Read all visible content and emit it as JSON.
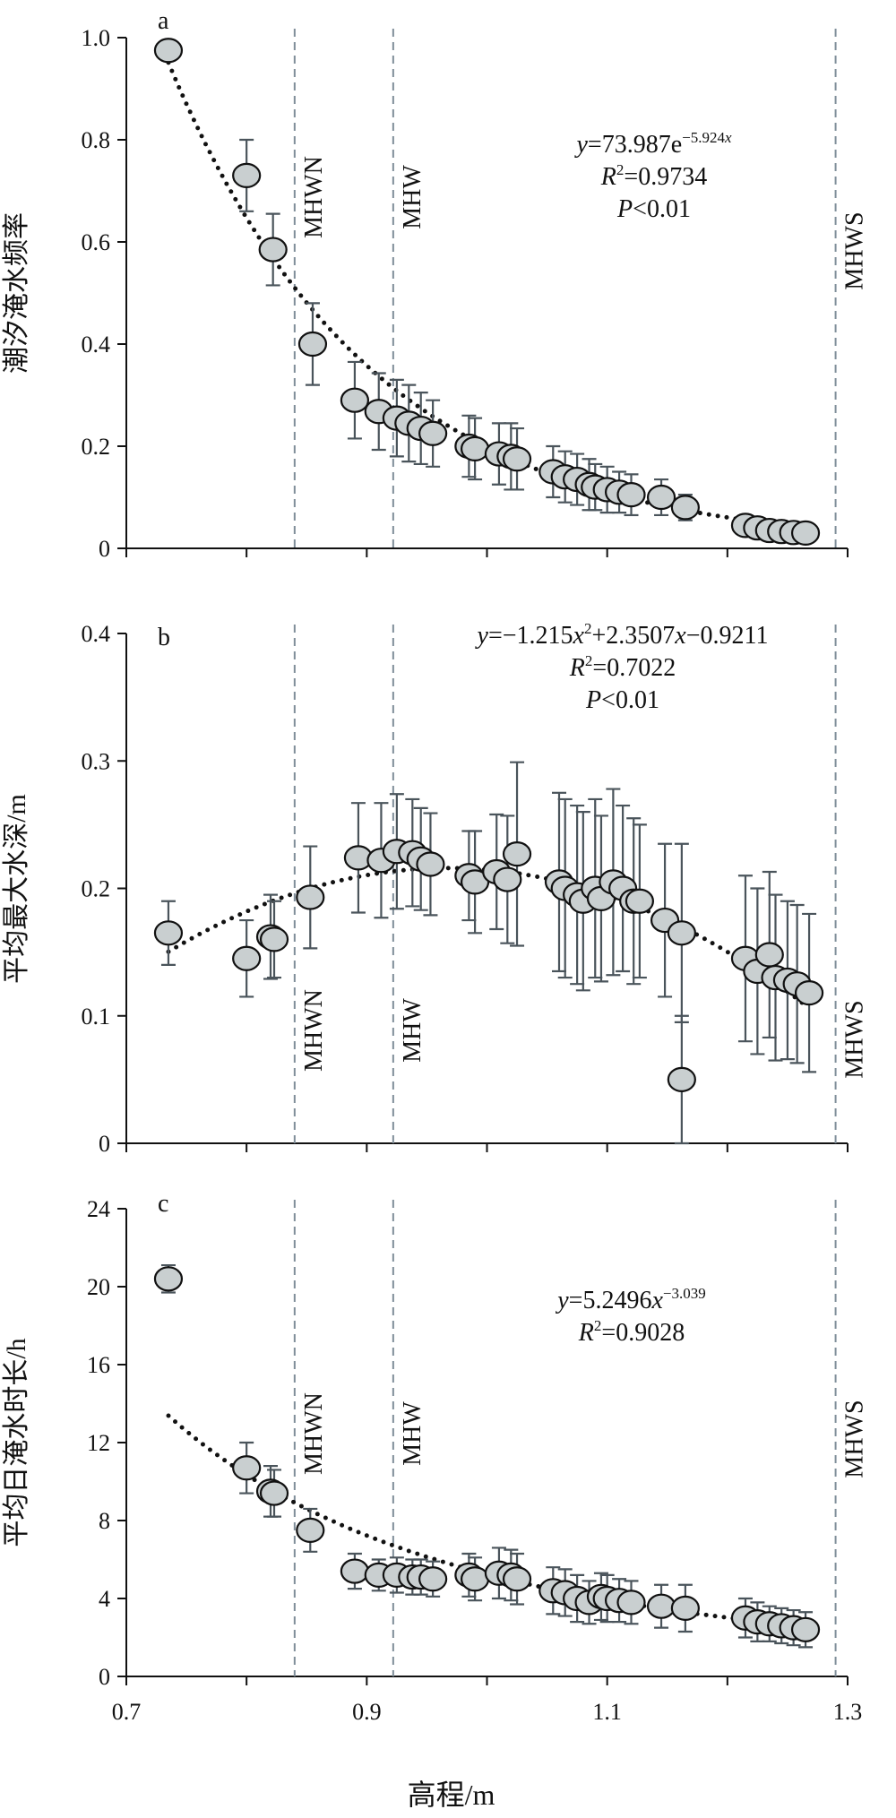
{
  "x_axis": {
    "label": "高程/m",
    "ticks": [
      "0.7",
      "0.9",
      "1.1",
      "1.3"
    ],
    "xlim": [
      0.7,
      1.3
    ]
  },
  "ref_lines": [
    {
      "name": "MHWN",
      "x": 0.84
    },
    {
      "name": "MHW",
      "x": 0.922
    },
    {
      "name": "MHWS",
      "x": 1.29
    }
  ],
  "colors": {
    "marker_fill": "#c9cfd0",
    "marker_edge": "#111111",
    "errorbar": "#4a545b",
    "ref_line": "#7f8e99",
    "fit_line": "#111111"
  },
  "chart_data": [
    {
      "type": "scatter",
      "panel_label": "a",
      "ylabel": "潮汐淹水频率",
      "ylim": [
        0,
        1.0
      ],
      "yticks": [
        "0",
        "0.2",
        "0.4",
        "0.6",
        "0.8",
        "1.0"
      ],
      "equation": {
        "lines": [
          [
            {
              "t": "y",
              "i": true
            },
            {
              "t": "=73.987e"
            },
            {
              "t": "−5.924",
              "sup": true
            },
            {
              "t": "x",
              "sup": true,
              "i": true
            }
          ],
          [
            {
              "t": "R",
              "i": true
            },
            {
              "t": "2",
              "sup": true
            },
            {
              "t": "=0.9734"
            }
          ],
          [
            {
              "t": "P",
              "i": true
            },
            {
              "t": "<0.01"
            }
          ]
        ]
      },
      "fit": {
        "model": "exp",
        "a": 73.987,
        "b": -5.924,
        "x_range": [
          0.735,
          1.265
        ]
      },
      "points": [
        {
          "x": 0.735,
          "y": 0.975,
          "err": 0.02
        },
        {
          "x": 0.8,
          "y": 0.73,
          "err": 0.07
        },
        {
          "x": 0.822,
          "y": 0.585,
          "err": 0.07
        },
        {
          "x": 0.855,
          "y": 0.4,
          "err": 0.08
        },
        {
          "x": 0.89,
          "y": 0.29,
          "err": 0.075
        },
        {
          "x": 0.91,
          "y": 0.268,
          "err": 0.075
        },
        {
          "x": 0.925,
          "y": 0.255,
          "err": 0.075
        },
        {
          "x": 0.935,
          "y": 0.245,
          "err": 0.075
        },
        {
          "x": 0.945,
          "y": 0.235,
          "err": 0.07
        },
        {
          "x": 0.955,
          "y": 0.225,
          "err": 0.065
        },
        {
          "x": 0.985,
          "y": 0.2,
          "err": 0.06
        },
        {
          "x": 0.99,
          "y": 0.195,
          "err": 0.06
        },
        {
          "x": 1.01,
          "y": 0.185,
          "err": 0.06
        },
        {
          "x": 1.02,
          "y": 0.18,
          "err": 0.065
        },
        {
          "x": 1.025,
          "y": 0.175,
          "err": 0.06
        },
        {
          "x": 1.055,
          "y": 0.15,
          "err": 0.05
        },
        {
          "x": 1.065,
          "y": 0.14,
          "err": 0.05
        },
        {
          "x": 1.075,
          "y": 0.135,
          "err": 0.05
        },
        {
          "x": 1.085,
          "y": 0.125,
          "err": 0.05
        },
        {
          "x": 1.09,
          "y": 0.12,
          "err": 0.045
        },
        {
          "x": 1.1,
          "y": 0.115,
          "err": 0.045
        },
        {
          "x": 1.11,
          "y": 0.11,
          "err": 0.04
        },
        {
          "x": 1.12,
          "y": 0.105,
          "err": 0.04
        },
        {
          "x": 1.145,
          "y": 0.1,
          "err": 0.035
        },
        {
          "x": 1.165,
          "y": 0.08,
          "err": 0.025
        },
        {
          "x": 1.215,
          "y": 0.045,
          "err": 0.01
        },
        {
          "x": 1.225,
          "y": 0.04,
          "err": 0.01
        },
        {
          "x": 1.235,
          "y": 0.035,
          "err": 0.01
        },
        {
          "x": 1.245,
          "y": 0.033,
          "err": 0.008
        },
        {
          "x": 1.255,
          "y": 0.031,
          "err": 0.008
        },
        {
          "x": 1.265,
          "y": 0.03,
          "err": 0.008
        }
      ]
    },
    {
      "type": "scatter",
      "panel_label": "b",
      "ylabel": "平均最大水深/m",
      "ylim": [
        0,
        0.4
      ],
      "yticks": [
        "0",
        "0.1",
        "0.2",
        "0.3",
        "0.4"
      ],
      "equation": {
        "lines": [
          [
            {
              "t": "y",
              "i": true
            },
            {
              "t": "=−1.215"
            },
            {
              "t": "x",
              "i": true
            },
            {
              "t": "2",
              "sup": true
            },
            {
              "t": "+2.3507"
            },
            {
              "t": "x",
              "i": true
            },
            {
              "t": "−0.9211"
            }
          ],
          [
            {
              "t": "R",
              "i": true
            },
            {
              "t": "2",
              "sup": true
            },
            {
              "t": "=0.7022"
            }
          ],
          [
            {
              "t": "P",
              "i": true
            },
            {
              "t": "<0.01"
            }
          ]
        ]
      },
      "fit": {
        "model": "poly2",
        "a": -1.215,
        "b": 2.3507,
        "c": -0.9211,
        "x_range": [
          0.735,
          1.265
        ]
      },
      "points": [
        {
          "x": 0.735,
          "y": 0.165,
          "err": 0.025
        },
        {
          "x": 0.8,
          "y": 0.145,
          "err": 0.03
        },
        {
          "x": 0.82,
          "y": 0.162,
          "err": 0.033
        },
        {
          "x": 0.823,
          "y": 0.16,
          "err": 0.03
        },
        {
          "x": 0.853,
          "y": 0.193,
          "err": 0.04
        },
        {
          "x": 0.893,
          "y": 0.224,
          "err": 0.043
        },
        {
          "x": 0.912,
          "y": 0.222,
          "err": 0.045
        },
        {
          "x": 0.925,
          "y": 0.229,
          "err": 0.045
        },
        {
          "x": 0.938,
          "y": 0.228,
          "err": 0.042
        },
        {
          "x": 0.945,
          "y": 0.223,
          "err": 0.04
        },
        {
          "x": 0.953,
          "y": 0.219,
          "err": 0.04
        },
        {
          "x": 0.985,
          "y": 0.21,
          "err": 0.035
        },
        {
          "x": 0.99,
          "y": 0.205,
          "err": 0.04
        },
        {
          "x": 1.008,
          "y": 0.213,
          "err": 0.045
        },
        {
          "x": 1.017,
          "y": 0.207,
          "err": 0.05
        },
        {
          "x": 1.025,
          "y": 0.227,
          "err": 0.072
        },
        {
          "x": 1.06,
          "y": 0.205,
          "err": 0.07
        },
        {
          "x": 1.065,
          "y": 0.2,
          "err": 0.07
        },
        {
          "x": 1.075,
          "y": 0.195,
          "err": 0.07
        },
        {
          "x": 1.08,
          "y": 0.19,
          "err": 0.07
        },
        {
          "x": 1.09,
          "y": 0.2,
          "err": 0.07
        },
        {
          "x": 1.095,
          "y": 0.192,
          "err": 0.065
        },
        {
          "x": 1.105,
          "y": 0.205,
          "err": 0.073
        },
        {
          "x": 1.113,
          "y": 0.2,
          "err": 0.065
        },
        {
          "x": 1.122,
          "y": 0.19,
          "err": 0.065
        },
        {
          "x": 1.127,
          "y": 0.19,
          "err": 0.06
        },
        {
          "x": 1.148,
          "y": 0.175,
          "err": 0.06
        },
        {
          "x": 1.162,
          "y": 0.165,
          "err": 0.07
        },
        {
          "x": 1.162,
          "y": 0.05,
          "err": 0.05
        },
        {
          "x": 1.215,
          "y": 0.145,
          "err": 0.065
        },
        {
          "x": 1.225,
          "y": 0.135,
          "err": 0.065
        },
        {
          "x": 1.235,
          "y": 0.148,
          "err": 0.065
        },
        {
          "x": 1.24,
          "y": 0.13,
          "err": 0.065
        },
        {
          "x": 1.25,
          "y": 0.128,
          "err": 0.062
        },
        {
          "x": 1.258,
          "y": 0.125,
          "err": 0.062
        },
        {
          "x": 1.268,
          "y": 0.118,
          "err": 0.062
        }
      ]
    },
    {
      "type": "scatter",
      "panel_label": "c",
      "ylabel": "平均日淹水时长/h",
      "xlabel": "高程/m",
      "ylim": [
        0,
        24
      ],
      "yticks": [
        "0",
        "4",
        "8",
        "12",
        "16",
        "20",
        "24"
      ],
      "equation": {
        "lines": [
          [
            {
              "t": "y",
              "i": true
            },
            {
              "t": "=5.2496"
            },
            {
              "t": "x",
              "i": true
            },
            {
              "t": "−3.039",
              "sup": true
            }
          ],
          [
            {
              "t": "R",
              "i": true
            },
            {
              "t": "2",
              "sup": true
            },
            {
              "t": "=0.9028"
            }
          ]
        ]
      },
      "fit": {
        "model": "power",
        "a": 5.2496,
        "b": -3.039,
        "x_range": [
          0.735,
          1.265
        ]
      },
      "points": [
        {
          "x": 0.735,
          "y": 20.4,
          "err": 0.7
        },
        {
          "x": 0.8,
          "y": 10.7,
          "err": 1.3
        },
        {
          "x": 0.82,
          "y": 9.5,
          "err": 1.3
        },
        {
          "x": 0.823,
          "y": 9.4,
          "err": 1.2
        },
        {
          "x": 0.853,
          "y": 7.5,
          "err": 1.1
        },
        {
          "x": 0.89,
          "y": 5.4,
          "err": 0.9
        },
        {
          "x": 0.91,
          "y": 5.2,
          "err": 0.8
        },
        {
          "x": 0.925,
          "y": 5.2,
          "err": 0.9
        },
        {
          "x": 0.938,
          "y": 5.1,
          "err": 0.9
        },
        {
          "x": 0.945,
          "y": 5.1,
          "err": 0.9
        },
        {
          "x": 0.955,
          "y": 5.0,
          "err": 0.9
        },
        {
          "x": 0.985,
          "y": 5.2,
          "err": 1.1
        },
        {
          "x": 0.99,
          "y": 5.0,
          "err": 1.1
        },
        {
          "x": 1.01,
          "y": 5.3,
          "err": 1.3
        },
        {
          "x": 1.02,
          "y": 5.2,
          "err": 1.3
        },
        {
          "x": 1.025,
          "y": 5.0,
          "err": 1.3
        },
        {
          "x": 1.055,
          "y": 4.4,
          "err": 1.2
        },
        {
          "x": 1.065,
          "y": 4.3,
          "err": 1.2
        },
        {
          "x": 1.075,
          "y": 4.0,
          "err": 1.2
        },
        {
          "x": 1.085,
          "y": 3.8,
          "err": 1.1
        },
        {
          "x": 1.095,
          "y": 4.1,
          "err": 1.2
        },
        {
          "x": 1.1,
          "y": 4.0,
          "err": 1.2
        },
        {
          "x": 1.11,
          "y": 3.9,
          "err": 1.1
        },
        {
          "x": 1.12,
          "y": 3.8,
          "err": 1.1
        },
        {
          "x": 1.145,
          "y": 3.6,
          "err": 1.1
        },
        {
          "x": 1.165,
          "y": 3.5,
          "err": 1.2
        },
        {
          "x": 1.215,
          "y": 3.0,
          "err": 1.0
        },
        {
          "x": 1.225,
          "y": 2.8,
          "err": 1.0
        },
        {
          "x": 1.235,
          "y": 2.7,
          "err": 0.9
        },
        {
          "x": 1.245,
          "y": 2.6,
          "err": 0.9
        },
        {
          "x": 1.255,
          "y": 2.5,
          "err": 0.9
        },
        {
          "x": 1.265,
          "y": 2.4,
          "err": 0.9
        }
      ]
    }
  ]
}
